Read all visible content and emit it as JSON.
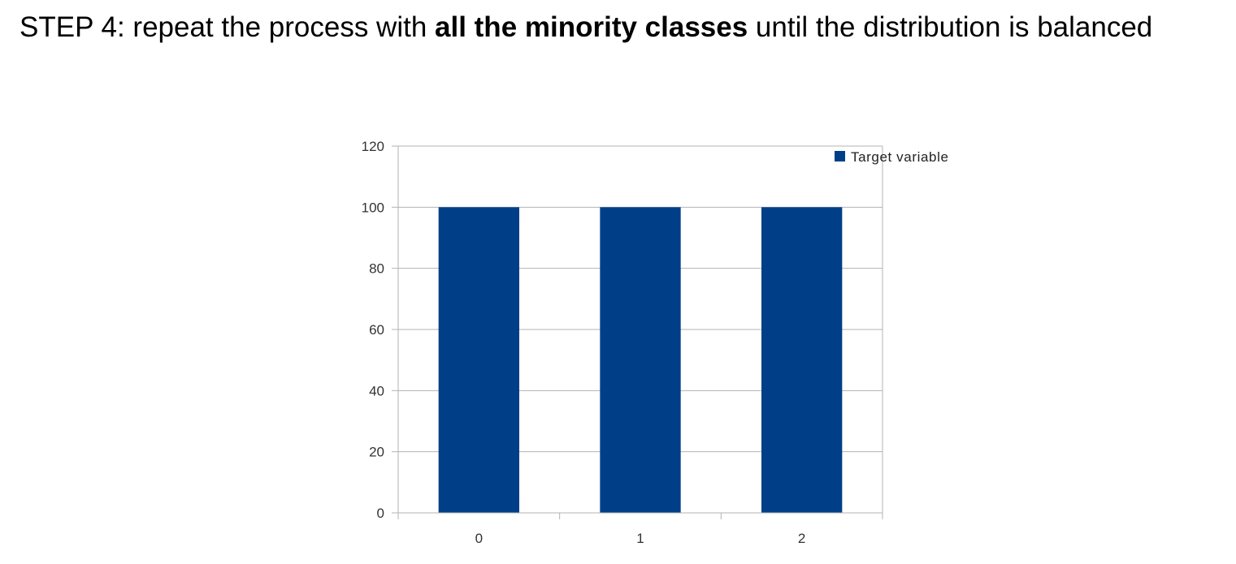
{
  "heading": {
    "prefix": "STEP 4: repeat the process with ",
    "emphasis": "all the minority classes",
    "suffix": " until the distribution is balanced"
  },
  "colors": {
    "bar": "#003f87",
    "grid": "#b3b3b3",
    "axis": "#b3b3b3",
    "text": "#333333"
  },
  "chart_data": {
    "type": "bar",
    "categories": [
      "0",
      "1",
      "2"
    ],
    "series": [
      {
        "name": "Target variable",
        "values": [
          100,
          100,
          100
        ]
      }
    ],
    "ylim": [
      0,
      120
    ],
    "yticks": [
      "0",
      "20",
      "40",
      "60",
      "80",
      "100",
      "120"
    ],
    "grid": true,
    "legend": "top-right"
  }
}
